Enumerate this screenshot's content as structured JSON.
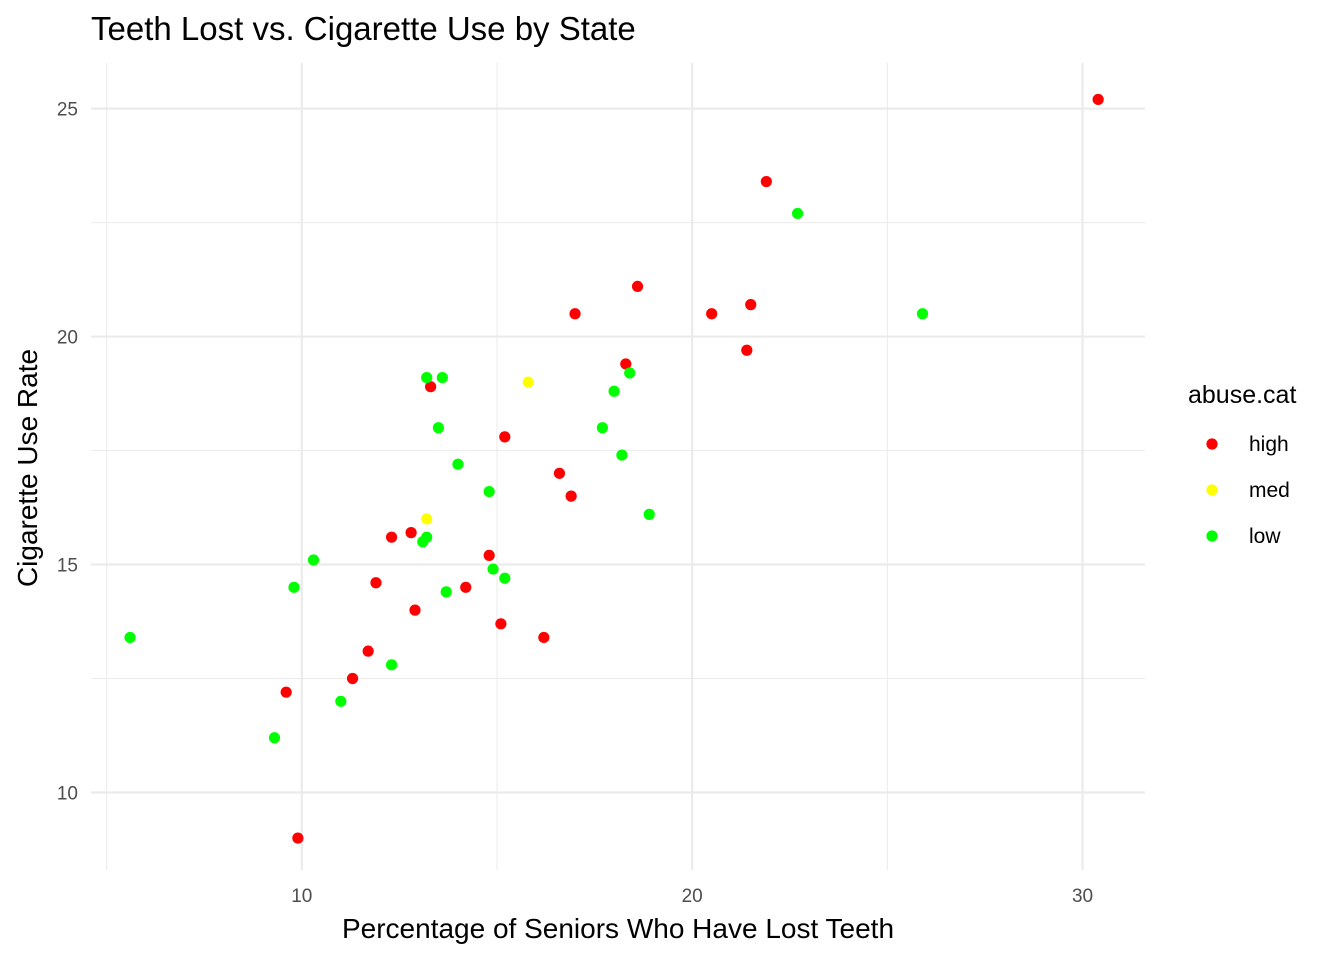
{
  "chart_data": {
    "type": "scatter",
    "title": "Teeth Lost vs. Cigarette Use by State",
    "xlabel": "Percentage of Seniors Who Have Lost Teeth",
    "ylabel": "Cigarette Use Rate",
    "xlim": [
      4.6,
      31.6
    ],
    "ylim": [
      8.3,
      26.0
    ],
    "x_ticks": [
      10,
      20,
      30
    ],
    "y_ticks": [
      10,
      15,
      20,
      25
    ],
    "grid": true,
    "legend": {
      "title": "abuse.cat",
      "position": "right",
      "entries": [
        {
          "name": "high",
          "color": "#ff0000"
        },
        {
          "name": "med",
          "color": "#ffff00"
        },
        {
          "name": "low",
          "color": "#00ff00"
        }
      ]
    },
    "series": [
      {
        "name": "high",
        "color": "#ff0000",
        "points": [
          {
            "x": 30.4,
            "y": 25.2
          },
          {
            "x": 21.9,
            "y": 23.4
          },
          {
            "x": 18.6,
            "y": 21.1
          },
          {
            "x": 17.0,
            "y": 20.5
          },
          {
            "x": 20.5,
            "y": 20.5
          },
          {
            "x": 21.5,
            "y": 20.7
          },
          {
            "x": 21.4,
            "y": 19.7
          },
          {
            "x": 18.3,
            "y": 19.4
          },
          {
            "x": 13.3,
            "y": 18.9
          },
          {
            "x": 15.2,
            "y": 17.8
          },
          {
            "x": 16.6,
            "y": 17.0
          },
          {
            "x": 16.9,
            "y": 16.5
          },
          {
            "x": 12.3,
            "y": 15.6
          },
          {
            "x": 12.8,
            "y": 15.7
          },
          {
            "x": 14.8,
            "y": 15.2
          },
          {
            "x": 11.9,
            "y": 14.6
          },
          {
            "x": 14.2,
            "y": 14.5
          },
          {
            "x": 12.9,
            "y": 14.0
          },
          {
            "x": 15.1,
            "y": 13.7
          },
          {
            "x": 16.2,
            "y": 13.4
          },
          {
            "x": 11.7,
            "y": 13.1
          },
          {
            "x": 11.3,
            "y": 12.5
          },
          {
            "x": 9.6,
            "y": 12.2
          },
          {
            "x": 9.9,
            "y": 9.0
          }
        ]
      },
      {
        "name": "med",
        "color": "#ffff00",
        "points": [
          {
            "x": 15.8,
            "y": 19.0
          },
          {
            "x": 13.2,
            "y": 16.0
          }
        ]
      },
      {
        "name": "low",
        "color": "#00ff00",
        "points": [
          {
            "x": 22.7,
            "y": 22.7
          },
          {
            "x": 25.9,
            "y": 20.5
          },
          {
            "x": 18.4,
            "y": 19.2
          },
          {
            "x": 13.2,
            "y": 19.1
          },
          {
            "x": 13.6,
            "y": 19.1
          },
          {
            "x": 18.0,
            "y": 18.8
          },
          {
            "x": 13.5,
            "y": 18.0
          },
          {
            "x": 17.7,
            "y": 18.0
          },
          {
            "x": 18.2,
            "y": 17.4
          },
          {
            "x": 14.0,
            "y": 17.2
          },
          {
            "x": 14.8,
            "y": 16.6
          },
          {
            "x": 18.9,
            "y": 16.1
          },
          {
            "x": 13.1,
            "y": 15.5
          },
          {
            "x": 13.2,
            "y": 15.6
          },
          {
            "x": 10.3,
            "y": 15.1
          },
          {
            "x": 14.9,
            "y": 14.9
          },
          {
            "x": 15.2,
            "y": 14.7
          },
          {
            "x": 9.8,
            "y": 14.5
          },
          {
            "x": 13.7,
            "y": 14.4
          },
          {
            "x": 5.6,
            "y": 13.4
          },
          {
            "x": 12.3,
            "y": 12.8
          },
          {
            "x": 11.0,
            "y": 12.0
          },
          {
            "x": 9.3,
            "y": 11.2
          }
        ]
      }
    ]
  }
}
